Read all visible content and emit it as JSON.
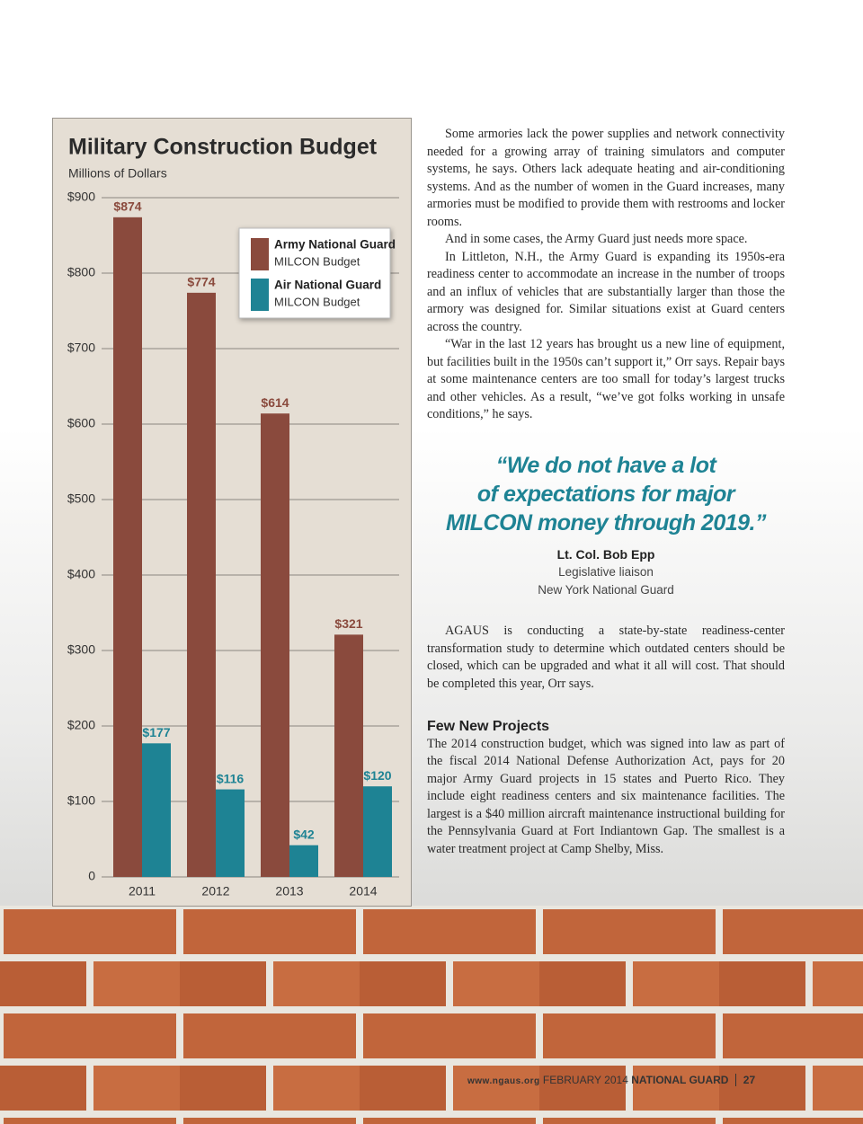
{
  "chart_data": {
    "type": "bar",
    "title": "Military Construction Budget",
    "subtitle": "Millions of Dollars",
    "categories": [
      "2011",
      "2012",
      "2013",
      "2014"
    ],
    "series": [
      {
        "name": "Army National Guard",
        "legend_sublabel": "MILCON Budget",
        "color": "#8a4a3d",
        "values": [
          874,
          774,
          614,
          321
        ],
        "value_labels": [
          "$874",
          "$774",
          "$614",
          "$321"
        ]
      },
      {
        "name": "Air National Guard",
        "legend_sublabel": "MILCON Budget",
        "color": "#1e8394",
        "values": [
          177,
          116,
          42,
          120
        ],
        "value_labels": [
          "$177",
          "$116",
          "$42",
          "$120"
        ]
      }
    ],
    "ylim": [
      0,
      900
    ],
    "yticks": [
      0,
      {
        "value": 100,
        "label": "$100"
      },
      {
        "value": 200,
        "label": "$200"
      },
      {
        "value": 300,
        "label": "$300"
      },
      {
        "value": 400,
        "label": "$400"
      },
      {
        "value": 500,
        "label": "$500"
      },
      {
        "value": 600,
        "label": "$600"
      },
      {
        "value": 700,
        "label": "$700"
      },
      {
        "value": 800,
        "label": "$800"
      },
      {
        "value": 900,
        "label": "$900"
      }
    ],
    "grid": true,
    "legend": "upper right"
  },
  "article": {
    "paragraphs": [
      "Some armories lack the power supplies and network connectivity needed for a growing array of training simulators and computer systems, he says. Others lack adequate heating and air-conditioning systems. And as the number of women in the Guard increases, many armories must be modified to provide them with restrooms and locker rooms.",
      "And in some cases, the Army Guard just needs more space.",
      "In Littleton, N.H., the Army Guard is expanding its 1950s-era readiness center to accommodate an increase in the number of troops and an influx of vehicles that are substantially larger than those the armory was designed for. Similar situations exist at Guard centers across the country.",
      "“War in the last 12 years has brought us a new line of equipment, but facilities built in the 1950s can’t support it,” Orr says. Repair bays at some maintenance centers are too small for today’s largest trucks and other vehicles. As a result, “we’ve got folks working in unsafe conditions,” he says."
    ],
    "quote": {
      "lines": [
        "“We do not have a lot",
        "of expectations for major",
        "MILCON money through 2019.”"
      ],
      "speaker": "Lt. Col. Bob Epp",
      "role": "Legislative liaison",
      "organization": "New York National Guard"
    },
    "paragraph_after_quote": "AGAUS is conducting a state-by-state readiness-center transformation study to determine which outdated centers should be closed, which can be upgraded and what it all will cost. That should be completed this year, Orr says.",
    "heading": "Few New Projects",
    "section_paragraph": "The 2014 construction budget, which was signed into law as part of the fiscal 2014 National Defense Authorization Act, pays for 20 major Army Guard projects in 15 states and Puerto Rico. They include eight readiness centers and six maintenance facilities. The largest is a $40 million aircraft maintenance instructional building for the Pennsylvania Guard at Fort Indiantown Gap. The smallest is a water treatment project at Camp Shelby, Miss."
  },
  "footer": {
    "site": "www.ngaus.org",
    "issue": "FEBRUARY 2014",
    "magazine": "NATIONAL GUARD",
    "page": "27"
  }
}
